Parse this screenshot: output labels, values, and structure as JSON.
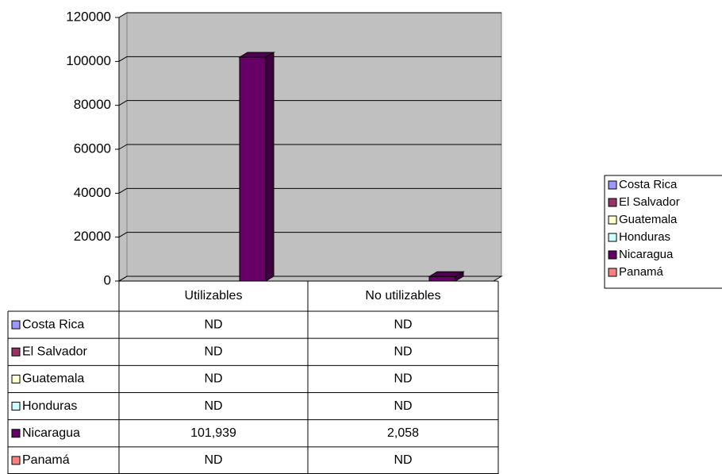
{
  "chart_data": {
    "type": "bar3d",
    "categories": [
      "Utilizables",
      "No utilizables"
    ],
    "series": [
      {
        "name": "Costa Rica",
        "color": "#9999ff",
        "values": [
          null,
          null
        ],
        "value_labels": [
          "ND",
          "ND"
        ]
      },
      {
        "name": "El Salvador",
        "color": "#993366",
        "values": [
          null,
          null
        ],
        "value_labels": [
          "ND",
          "ND"
        ]
      },
      {
        "name": "Guatemala",
        "color": "#ffffcc",
        "values": [
          null,
          null
        ],
        "value_labels": [
          "ND",
          "ND"
        ]
      },
      {
        "name": "Honduras",
        "color": "#ccffff",
        "values": [
          null,
          null
        ],
        "value_labels": [
          "ND",
          "ND"
        ]
      },
      {
        "name": "Nicaragua",
        "color": "#660066",
        "values": [
          101939,
          2058
        ],
        "value_labels": [
          "101,939",
          "2,058"
        ]
      },
      {
        "name": "Panamá",
        "color": "#ff8080",
        "values": [
          null,
          null
        ],
        "value_labels": [
          "ND",
          "ND"
        ]
      }
    ],
    "ylim": [
      0,
      120000
    ],
    "yticks": [
      0,
      20000,
      40000,
      60000,
      80000,
      100000,
      120000
    ],
    "grid": true,
    "legend": "right",
    "data_table": true
  }
}
